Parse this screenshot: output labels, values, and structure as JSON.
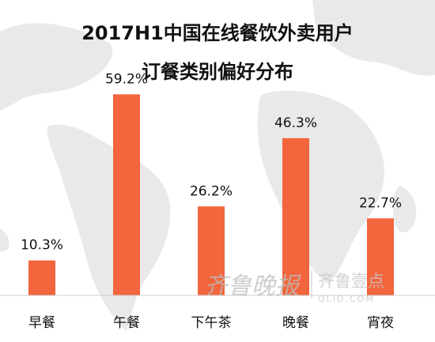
{
  "title_line1": "2017H1中国在线餐饮外卖用户",
  "title_line2": "订餐类别偏好分布",
  "watermark": {
    "brand_cn": "齐鲁晚报",
    "brand_cn2": "齐鲁壹点",
    "brand_url": "QLID.COM"
  },
  "colors": {
    "bar": "#f3653c",
    "text": "#111111",
    "axis": "#cccccc"
  },
  "chart_data": {
    "type": "bar",
    "title": "2017H1中国在线餐饮外卖用户订餐类别偏好分布",
    "categories": [
      "早餐",
      "午餐",
      "下午茶",
      "晚餐",
      "宵夜"
    ],
    "values": [
      10.3,
      59.2,
      26.2,
      46.3,
      22.7
    ],
    "value_labels": [
      "10.3%",
      "59.2%",
      "26.2%",
      "46.3%",
      "22.7%"
    ],
    "unit": "%",
    "ylim": [
      0,
      70
    ],
    "grid": false,
    "legend": "none",
    "xlabel": "",
    "ylabel": ""
  }
}
